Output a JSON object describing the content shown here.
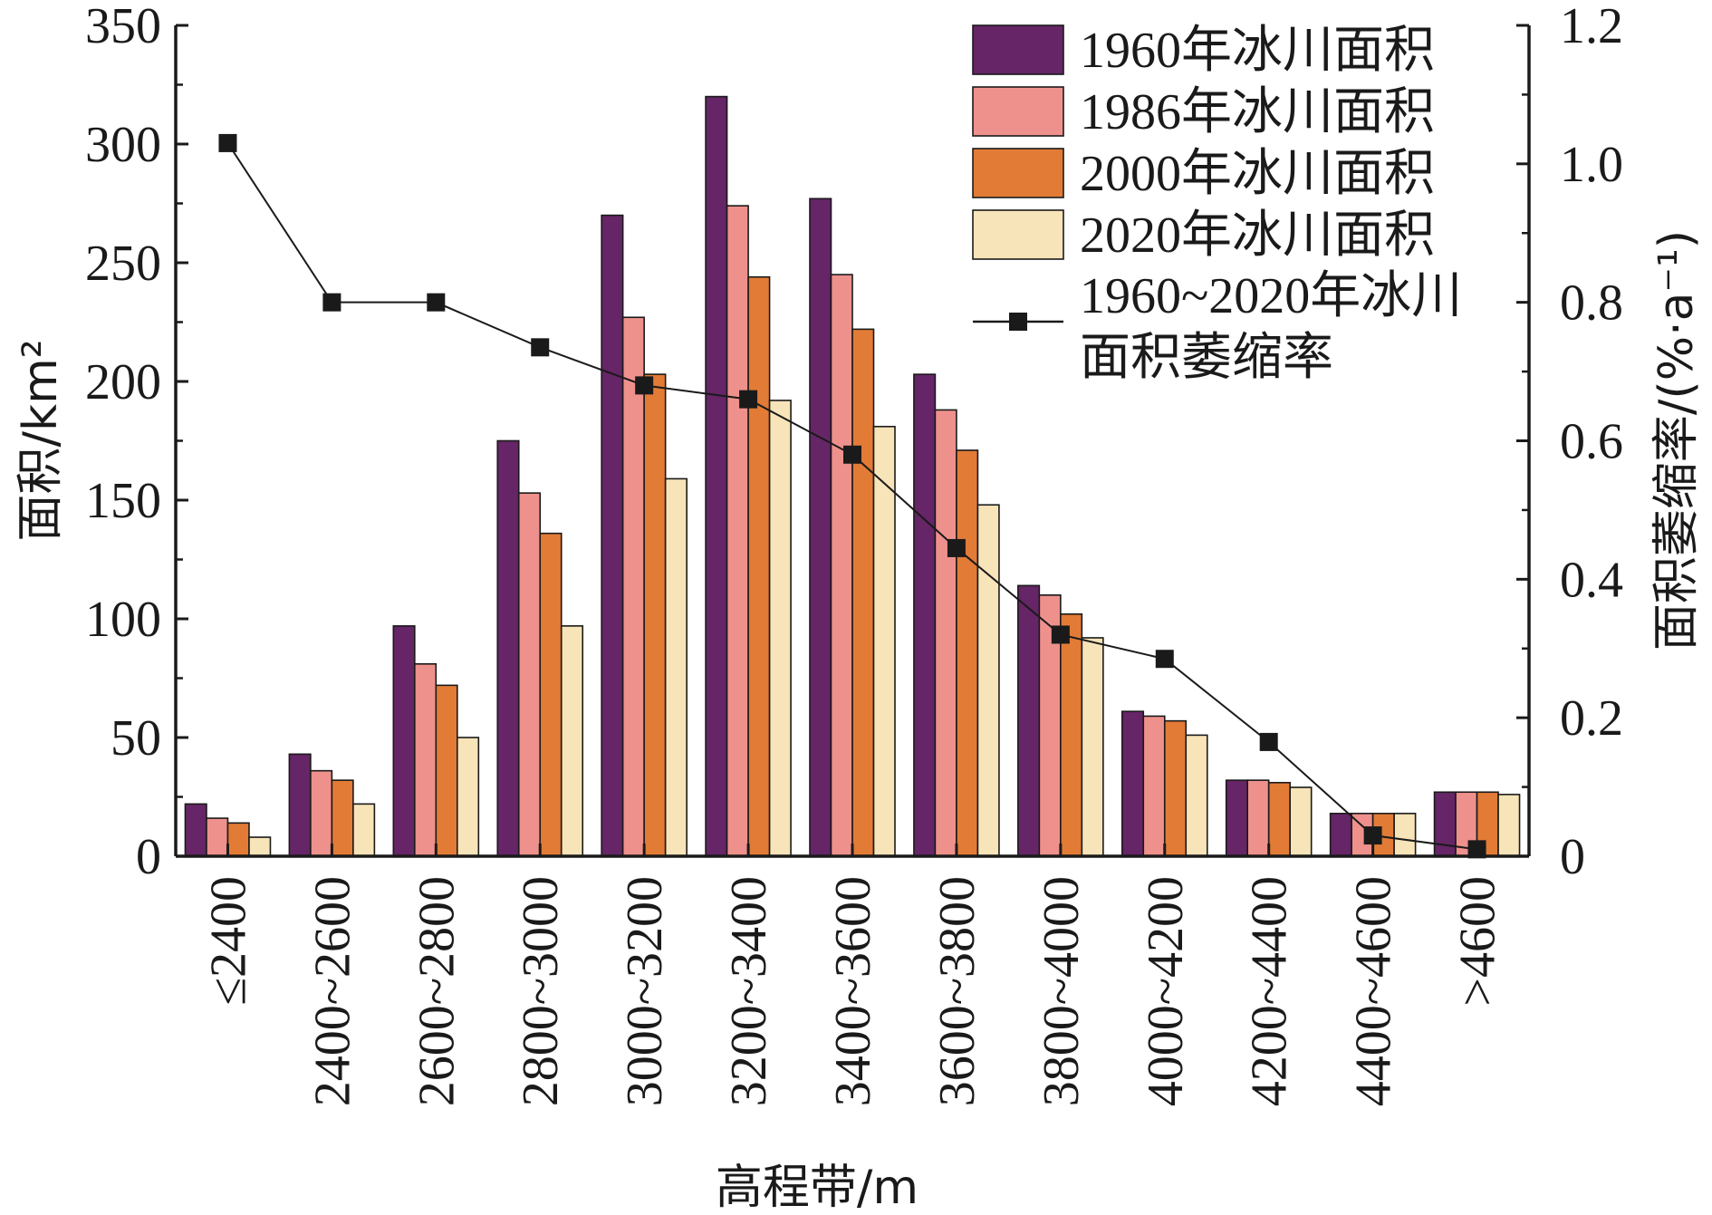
{
  "chart_data": {
    "type": "bar",
    "categories": [
      "≤2400",
      "2400~2600",
      "2600~2800",
      "2800~3000",
      "3000~3200",
      "3200~3400",
      "3400~3600",
      "3600~3800",
      "3800~4000",
      "4000~4200",
      "4200~4400",
      "4400~4600",
      ">4600"
    ],
    "series": [
      {
        "name": "1960年冰川面积",
        "type": "bar",
        "axis": "left",
        "color": "#652566",
        "values": [
          22,
          43,
          97,
          175,
          270,
          320,
          277,
          203,
          114,
          61,
          32,
          18,
          27
        ]
      },
      {
        "name": "1986年冰川面积",
        "type": "bar",
        "axis": "left",
        "color": "#ee918c",
        "values": [
          16,
          36,
          81,
          153,
          227,
          274,
          245,
          188,
          110,
          59,
          32,
          18,
          27
        ]
      },
      {
        "name": "2000年冰川面积",
        "type": "bar",
        "axis": "left",
        "color": "#e27b36",
        "values": [
          14,
          32,
          72,
          136,
          203,
          244,
          222,
          171,
          102,
          57,
          31,
          18,
          27
        ]
      },
      {
        "name": "2020年冰川面积",
        "type": "bar",
        "axis": "left",
        "color": "#f7e4b8",
        "values": [
          8,
          22,
          50,
          97,
          159,
          192,
          181,
          148,
          92,
          51,
          29,
          18,
          26
        ]
      },
      {
        "name": "1960~2020年冰川面积萎缩率",
        "name_lines": [
          "1960~2020年冰川",
          "面积萎缩率"
        ],
        "type": "line",
        "axis": "right",
        "color": "#1a1a1a",
        "marker": "square",
        "values": [
          1.03,
          0.8,
          0.8,
          0.735,
          0.68,
          0.66,
          0.58,
          0.445,
          0.32,
          0.285,
          0.165,
          0.03,
          0.01
        ]
      }
    ],
    "xlabel": "高程带/m",
    "ylabel": "面积/km²",
    "y2label": "面积萎缩率/(%·a⁻¹)",
    "ylim": [
      0,
      350
    ],
    "y2lim": [
      0,
      1.2
    ],
    "yticks": [
      "0",
      "50",
      "100",
      "150",
      "200",
      "250",
      "300",
      "350"
    ],
    "y2ticks": [
      "0",
      "0.2",
      "0.4",
      "0.6",
      "0.8",
      "1.0",
      "1.2"
    ],
    "grid": false,
    "legend_position": "top-right"
  }
}
